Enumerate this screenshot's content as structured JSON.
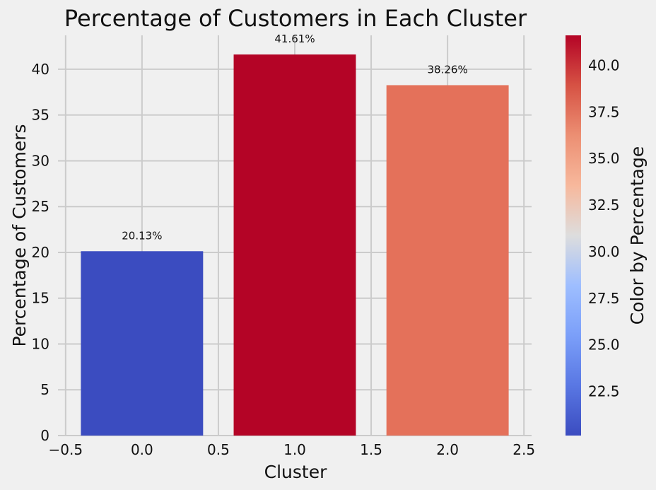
{
  "chart_data": {
    "type": "bar",
    "title": "Percentage of Customers in Each Cluster",
    "xlabel": "Cluster",
    "ylabel": "Percentage of Customers",
    "x": [
      0,
      1,
      2
    ],
    "values": [
      20.13,
      41.61,
      38.26
    ],
    "data_labels": [
      "20.13%",
      "41.61%",
      "38.26%"
    ],
    "bar_width": 0.8,
    "xlim": [
      -0.55,
      2.55
    ],
    "ylim": [
      0,
      43.7
    ],
    "xticks": [
      -0.5,
      0.0,
      0.5,
      1.0,
      1.5,
      2.0,
      2.5
    ],
    "xtick_labels": [
      "−0.5",
      "0.0",
      "0.5",
      "1.0",
      "1.5",
      "2.0",
      "2.5"
    ],
    "yticks": [
      0,
      5,
      10,
      15,
      20,
      25,
      30,
      35,
      40
    ],
    "ytick_labels": [
      "0",
      "5",
      "10",
      "15",
      "20",
      "25",
      "30",
      "35",
      "40"
    ],
    "grid": true,
    "colors": [
      "#3b4cc0",
      "#b40426",
      "#e4715a"
    ],
    "colorbar": {
      "label": "Color by Percentage",
      "colormap": "coolwarm",
      "range": [
        20.13,
        41.61
      ],
      "ticks": [
        22.5,
        25.0,
        27.5,
        30.0,
        32.5,
        35.0,
        37.5,
        40.0
      ],
      "tick_labels": [
        "22.5",
        "25.0",
        "27.5",
        "30.0",
        "32.5",
        "35.0",
        "37.5",
        "40.0"
      ]
    }
  }
}
